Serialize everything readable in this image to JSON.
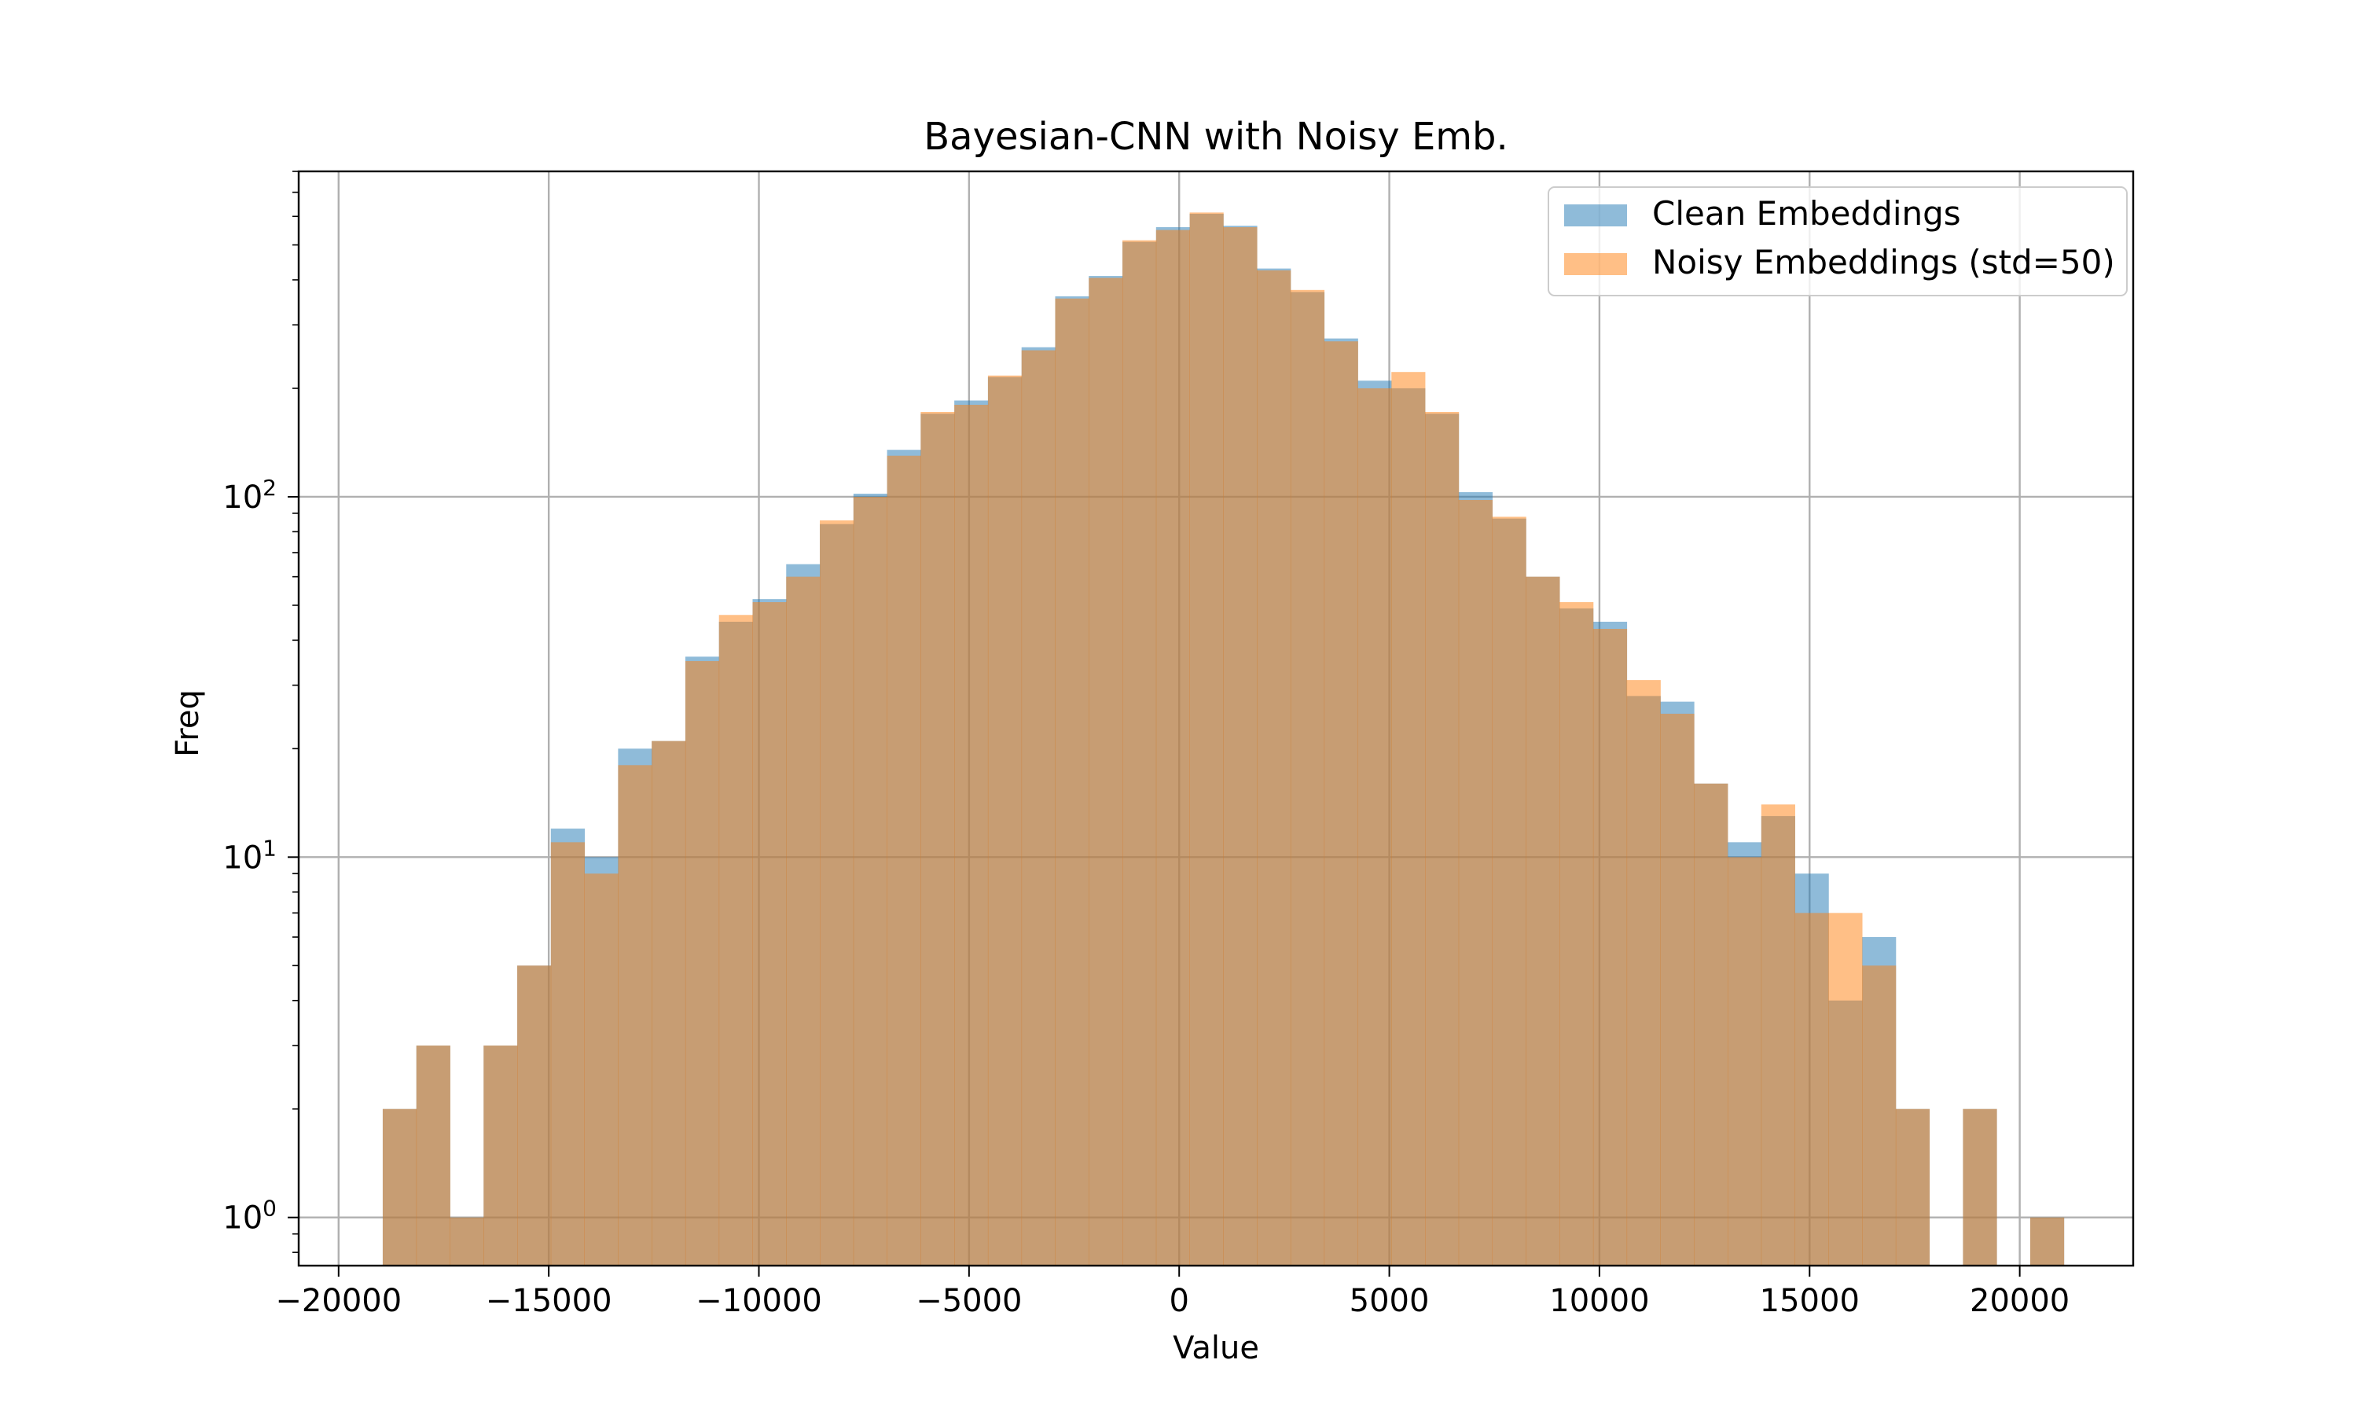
{
  "chart_data": {
    "type": "histogram",
    "title": "Bayesian-CNN with Noisy Emb.",
    "xlabel": "Value",
    "ylabel": "Freq",
    "xlim": [
      -20950,
      22700
    ],
    "ylim": [
      0.735,
      800
    ],
    "yscale": "log",
    "grid": true,
    "legend_position": "top-right",
    "x_ticks": [
      -20000,
      -15000,
      -10000,
      -5000,
      0,
      5000,
      10000,
      15000,
      20000
    ],
    "x_tick_labels": [
      "−20000",
      "−15000",
      "−10000",
      "−5000",
      "0",
      "5000",
      "10000",
      "15000",
      "20000"
    ],
    "y_ticks": [
      1,
      10,
      100
    ],
    "y_tick_labels": [
      {
        "base": "10",
        "exp": "0"
      },
      {
        "base": "10",
        "exp": "1"
      },
      {
        "base": "10",
        "exp": "2"
      }
    ],
    "bin_width": 800,
    "bin_start": -18950,
    "series": [
      {
        "name": "Clean Embeddings",
        "color": "#1f77b4",
        "alpha": 0.5,
        "values": [
          2,
          3,
          1,
          3,
          5,
          12,
          10,
          20,
          21,
          36,
          45,
          52,
          65,
          84,
          102,
          135,
          170,
          185,
          215,
          260,
          360,
          410,
          510,
          560,
          610,
          565,
          430,
          370,
          275,
          210,
          200,
          170,
          103,
          87,
          60,
          49,
          45,
          28,
          27,
          16,
          11,
          13,
          9,
          4,
          6,
          2,
          0,
          2,
          0,
          1
        ]
      },
      {
        "name": "Noisy Embeddings (std=50)",
        "color": "#ff7f0e",
        "alpha": 0.5,
        "values": [
          2,
          3,
          1,
          3,
          5,
          11,
          9,
          18,
          21,
          35,
          47,
          51,
          60,
          86,
          100,
          130,
          172,
          180,
          217,
          255,
          355,
          405,
          515,
          550,
          615,
          560,
          425,
          375,
          270,
          200,
          222,
          172,
          98,
          88,
          60,
          51,
          43,
          31,
          25,
          16,
          10,
          14,
          7,
          7,
          5,
          2,
          0,
          2,
          0,
          1
        ]
      }
    ]
  }
}
